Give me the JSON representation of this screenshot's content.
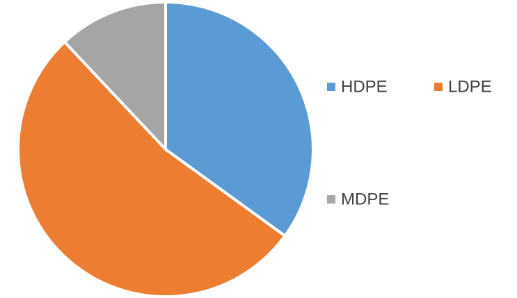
{
  "chart_data": {
    "type": "pie",
    "categories": [
      "HDPE",
      "LDPE",
      "MDPE"
    ],
    "values": [
      35,
      53,
      12
    ],
    "colors": [
      "#5b9bd5",
      "#ed7d31",
      "#a5a5a5"
    ]
  }
}
